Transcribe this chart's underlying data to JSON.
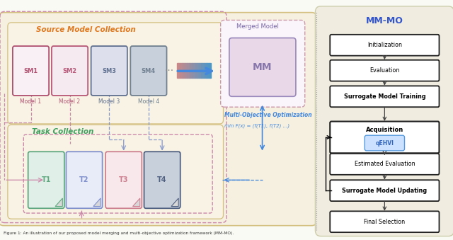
{
  "bg_color": "#fafaf5",
  "left_panel_bg": "#f5f0e0",
  "right_panel_bg": "#f0ede0",
  "title_left": "Source Model Collection",
  "title_left_color": "#e07820",
  "title_task": "Task Collection",
  "title_task_color": "#40a060",
  "title_right": "MM-MO",
  "title_right_color": "#3355cc",
  "source_models": [
    "SM1",
    "SM2",
    "SM3",
    "SM4"
  ],
  "model_labels": [
    "Model 1",
    "Model 2",
    "Model 3",
    "Model 4"
  ],
  "sm_colors": [
    "#b05070",
    "#b85878",
    "#607090",
    "#708090"
  ],
  "sm_fills": [
    "#f8f0f4",
    "#f5eaf0",
    "#dde0ec",
    "#c8d0dc"
  ],
  "merged_label": "Merged Model",
  "merged_model": "MM",
  "mm_fill": "#e8d8e8",
  "task_labels": [
    "T1",
    "T2",
    "T3",
    "T4"
  ],
  "task_colors": [
    "#60a880",
    "#8090cc",
    "#cc8090",
    "#506080"
  ],
  "task_fills": [
    "#e0f0e8",
    "#e8ecf8",
    "#f8e8ec",
    "#c8d0dc"
  ],
  "opt_text_line1": "Multi-Objective Optimization",
  "opt_text_line2": "min F(x) = (f(T1), f(T2) ...)",
  "right_steps": [
    "Initialization",
    "Evaluation",
    "Surrogate Model Training",
    "Acquisition",
    "Estimated Evaluation",
    "Surrogate Model Updating",
    "Final Selection"
  ],
  "caption": "Figure 1: An illustration of our proposed model merging and multi-objective optimization framework (MM-MO).",
  "fig_w": 6.4,
  "fig_h": 3.39,
  "dpi": 100
}
